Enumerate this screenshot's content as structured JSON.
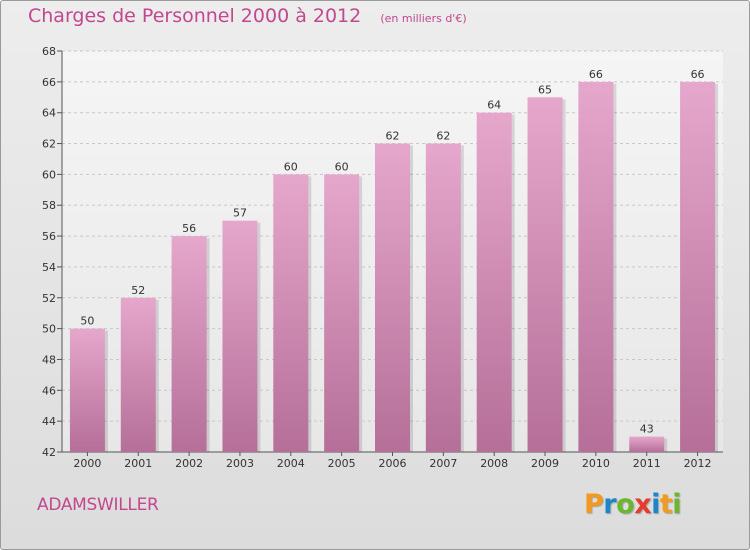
{
  "chart_data": {
    "type": "bar",
    "title": "Charges de Personnel 2000 à 2012",
    "subtitle": "(en milliers d'€)",
    "categories": [
      "2000",
      "2001",
      "2002",
      "2003",
      "2004",
      "2005",
      "2006",
      "2007",
      "2008",
      "2009",
      "2010",
      "2011",
      "2012"
    ],
    "values": [
      50,
      52,
      56,
      57,
      60,
      60,
      62,
      62,
      64,
      65,
      66,
      43,
      66
    ],
    "ylim": [
      42,
      68
    ],
    "yticks": [
      42,
      44,
      46,
      48,
      50,
      52,
      54,
      56,
      58,
      60,
      62,
      64,
      66,
      68
    ],
    "grid": true,
    "bar_color_top": "#e6a7cc",
    "bar_color_bottom": "#b56f98"
  },
  "footer": {
    "commune": "ADAMSWILLER",
    "brand": "Proxiti",
    "brand_letters": [
      {
        "char": "P",
        "color": "#f29a1e"
      },
      {
        "char": "r",
        "color": "#1d86c7"
      },
      {
        "char": "o",
        "color": "#6cb52d"
      },
      {
        "char": "x",
        "color": "#e63b2e"
      },
      {
        "char": "i",
        "color": "#1d86c7"
      },
      {
        "char": "t",
        "color": "#f29a1e"
      },
      {
        "char": "i",
        "color": "#6cb52d"
      }
    ]
  }
}
